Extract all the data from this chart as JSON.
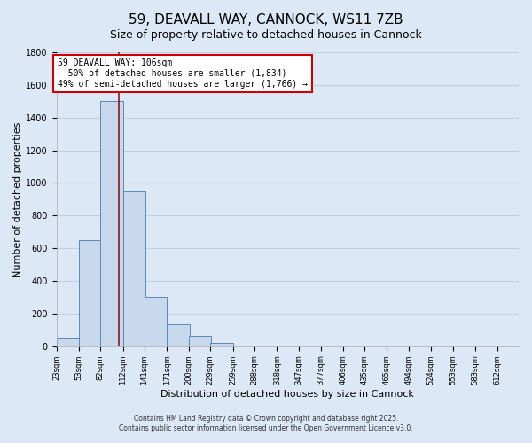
{
  "title": "59, DEAVALL WAY, CANNOCK, WS11 7ZB",
  "subtitle": "Size of property relative to detached houses in Cannock",
  "bar_values": [
    50,
    650,
    1500,
    950,
    300,
    135,
    65,
    20,
    5,
    0,
    0,
    0,
    0,
    0,
    0,
    0
  ],
  "bin_edges": [
    23,
    53,
    82,
    112,
    141,
    171,
    200,
    229,
    259,
    288,
    318,
    347,
    377,
    406,
    435,
    465,
    494
  ],
  "all_ticks": [
    23,
    53,
    82,
    112,
    141,
    171,
    200,
    229,
    259,
    288,
    318,
    347,
    377,
    406,
    435,
    465,
    494,
    524,
    553,
    583,
    612
  ],
  "tick_labels": [
    "23sqm",
    "53sqm",
    "82sqm",
    "112sqm",
    "141sqm",
    "171sqm",
    "200sqm",
    "229sqm",
    "259sqm",
    "288sqm",
    "318sqm",
    "347sqm",
    "377sqm",
    "406sqm",
    "435sqm",
    "465sqm",
    "494sqm",
    "524sqm",
    "553sqm",
    "583sqm",
    "612sqm"
  ],
  "bar_color": "#c9d9ed",
  "bar_edgecolor": "#5a8ab5",
  "bar_linewidth": 0.7,
  "vline_x": 106,
  "vline_color": "#8b1a1a",
  "vline_linewidth": 1.2,
  "ylim": [
    0,
    1800
  ],
  "yticks": [
    0,
    200,
    400,
    600,
    800,
    1000,
    1200,
    1400,
    1600,
    1800
  ],
  "ylabel": "Number of detached properties",
  "xlabel": "Distribution of detached houses by size in Cannock",
  "annotation_text": "59 DEAVALL WAY: 106sqm\n← 50% of detached houses are smaller (1,834)\n49% of semi-detached houses are larger (1,766) →",
  "annotation_boxcolor": "white",
  "annotation_edgecolor": "#cc0000",
  "bg_color": "#dce8f5",
  "grid_color": "#c0d0e0",
  "footer_line1": "Contains HM Land Registry data © Crown copyright and database right 2025.",
  "footer_line2": "Contains public sector information licensed under the Open Government Licence v3.0.",
  "title_fontsize": 11,
  "subtitle_fontsize": 9,
  "xlabel_fontsize": 8,
  "ylabel_fontsize": 8,
  "tick_fontsize": 6,
  "ytick_fontsize": 7,
  "annotation_fontsize": 7,
  "footer_fontsize": 5.5
}
